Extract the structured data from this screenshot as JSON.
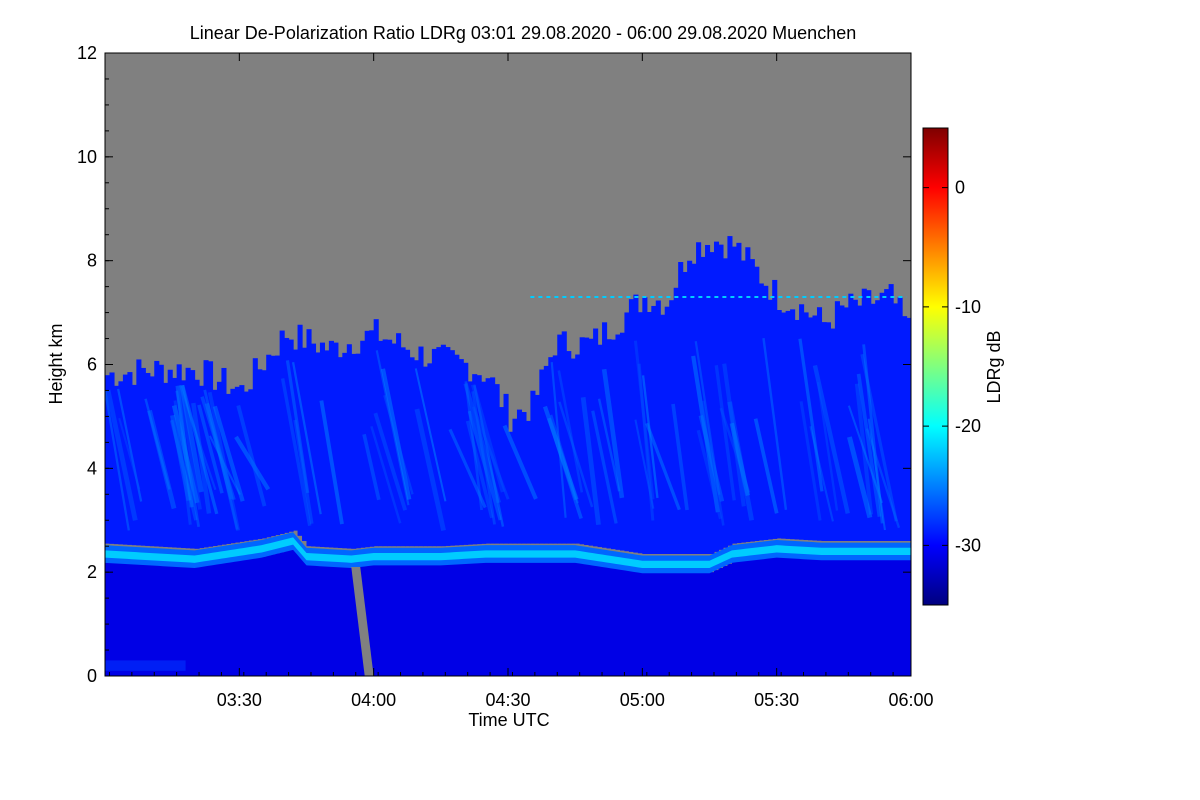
{
  "chart_data": {
    "type": "heatmap",
    "title": "Linear De-Polarization Ratio LDRg   03:01 29.08.2020 - 06:00 29.08.2020 Muenchen",
    "xlabel": "Time UTC",
    "ylabel": "Height km",
    "x_range": [
      "03:01",
      "06:00"
    ],
    "ylim": [
      0,
      12
    ],
    "x_ticks": [
      {
        "label": "03:30",
        "minutes": 29
      },
      {
        "label": "04:00",
        "minutes": 59
      },
      {
        "label": "04:30",
        "minutes": 89
      },
      {
        "label": "05:00",
        "minutes": 119
      },
      {
        "label": "05:30",
        "minutes": 149
      },
      {
        "label": "06:00",
        "minutes": 179
      }
    ],
    "y_ticks": [
      0,
      2,
      4,
      6,
      8,
      10,
      12
    ],
    "colorbar": {
      "label": "LDRg dB",
      "range": [
        -35,
        5
      ],
      "ticks": [
        {
          "label": "0",
          "value": 0
        },
        {
          "label": "-10",
          "value": -10
        },
        {
          "label": "-20",
          "value": -20
        },
        {
          "label": "-30",
          "value": -30
        }
      ],
      "colormap": "jet"
    },
    "no_signal_color": "#808080",
    "features": {
      "signal_top_km": [
        [
          0,
          5.8
        ],
        [
          10,
          5.9
        ],
        [
          20,
          5.9
        ],
        [
          30,
          5.5
        ],
        [
          40,
          6.6
        ],
        [
          50,
          6.3
        ],
        [
          60,
          6.6
        ],
        [
          70,
          6.2
        ],
        [
          80,
          6.0
        ],
        [
          85,
          5.8
        ],
        [
          90,
          5.0
        ],
        [
          95,
          5.2
        ],
        [
          100,
          6.4
        ],
        [
          108,
          6.4
        ],
        [
          115,
          6.9
        ],
        [
          120,
          7.3
        ],
        [
          125,
          7.2
        ],
        [
          130,
          8.2
        ],
        [
          135,
          8.4
        ],
        [
          140,
          8.3
        ],
        [
          145,
          7.8
        ],
        [
          150,
          7.3
        ],
        [
          155,
          7.1
        ],
        [
          160,
          6.8
        ],
        [
          165,
          7.1
        ],
        [
          170,
          7.2
        ],
        [
          175,
          7.3
        ],
        [
          179,
          6.7
        ]
      ],
      "melting_layer_km": [
        [
          0,
          2.3
        ],
        [
          20,
          2.2
        ],
        [
          35,
          2.4
        ],
        [
          42,
          2.55
        ],
        [
          45,
          2.25
        ],
        [
          55,
          2.2
        ],
        [
          60,
          2.25
        ],
        [
          75,
          2.25
        ],
        [
          85,
          2.3
        ],
        [
          95,
          2.3
        ],
        [
          105,
          2.3
        ],
        [
          120,
          2.1
        ],
        [
          135,
          2.1
        ],
        [
          140,
          2.3
        ],
        [
          150,
          2.4
        ],
        [
          160,
          2.35
        ],
        [
          179,
          2.35
        ]
      ],
      "melting_layer_ldr_db": -22,
      "background_ldr_db": -31,
      "mid_level_ldr_db": -29
    }
  }
}
